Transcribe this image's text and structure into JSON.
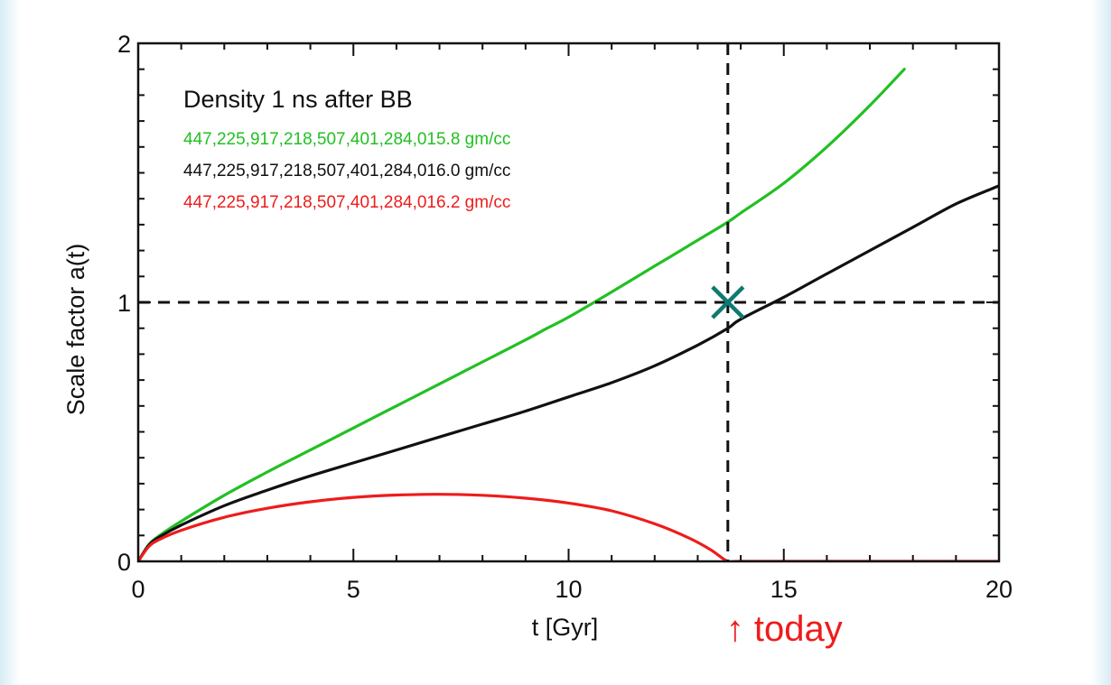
{
  "chart_data": {
    "type": "line",
    "title": "",
    "xlabel": "t [Gyr]",
    "ylabel": "Scale factor a(t)",
    "xlim": [
      0,
      20
    ],
    "ylim": [
      0,
      2
    ],
    "x_ticks": [
      0,
      5,
      10,
      15,
      20
    ],
    "y_ticks": [
      0,
      1,
      2
    ],
    "grid": false,
    "legend": {
      "title": "Density 1 ns after BB",
      "placement": "top-left",
      "entries": [
        {
          "label": "447,225,917,218,507,401,284,015.8 gm/cc",
          "color": "#22c022"
        },
        {
          "label": "447,225,917,218,507,401,284,016.0 gm/cc",
          "color": "#111111"
        },
        {
          "label": "447,225,917,218,507,401,284,016.2 gm/cc",
          "color": "#ee1c1c"
        }
      ]
    },
    "series": [
      {
        "name": "447,225,917,218,507,401,284,015.8 gm/cc",
        "color": "#22c022",
        "x": [
          0,
          0.25,
          0.5,
          1,
          2,
          3,
          4,
          5,
          6,
          7,
          8,
          9,
          9.5,
          10,
          11,
          12,
          13,
          13.7,
          14,
          15,
          16,
          17,
          17.8
        ],
        "y": [
          0,
          0.065,
          0.1,
          0.155,
          0.255,
          0.345,
          0.43,
          0.515,
          0.6,
          0.685,
          0.77,
          0.855,
          0.9,
          0.943,
          1.04,
          1.14,
          1.24,
          1.31,
          1.345,
          1.46,
          1.6,
          1.76,
          1.9
        ]
      },
      {
        "name": "447,225,917,218,507,401,284,016.0 gm/cc",
        "color": "#111111",
        "x": [
          0,
          0.25,
          0.5,
          1,
          2,
          3,
          4,
          5,
          6,
          7,
          8,
          9,
          10,
          11,
          12,
          13,
          13.7,
          14,
          15,
          16,
          17,
          18,
          19,
          20
        ],
        "y": [
          0,
          0.063,
          0.095,
          0.14,
          0.215,
          0.275,
          0.33,
          0.38,
          0.43,
          0.48,
          0.53,
          0.58,
          0.635,
          0.69,
          0.755,
          0.835,
          0.9,
          0.935,
          1.02,
          1.11,
          1.2,
          1.29,
          1.38,
          1.45
        ]
      },
      {
        "name": "447,225,917,218,507,401,284,016.2 gm/cc",
        "color": "#ee1c1c",
        "x": [
          0,
          0.25,
          0.5,
          1,
          2,
          3,
          4,
          5,
          6,
          7,
          8,
          9,
          10,
          11,
          12,
          12.8,
          13.3,
          13.7,
          14,
          16,
          18,
          20
        ],
        "y": [
          0,
          0.058,
          0.085,
          0.12,
          0.17,
          0.205,
          0.23,
          0.247,
          0.256,
          0.259,
          0.255,
          0.244,
          0.225,
          0.195,
          0.145,
          0.09,
          0.045,
          0.0,
          0.0,
          0.0,
          0.0,
          0.0
        ]
      }
    ],
    "reference_lines": [
      {
        "orientation": "horizontal",
        "value": 1,
        "style": "dashed",
        "color": "#111111"
      },
      {
        "orientation": "vertical",
        "value": 13.7,
        "style": "dashed",
        "color": "#111111"
      }
    ],
    "markers": [
      {
        "x": 13.7,
        "y": 1,
        "symbol": "x",
        "color": "#107a70"
      }
    ],
    "annotations": [
      {
        "text": "↑ today",
        "x": 13.7,
        "position": "below-axis",
        "color": "#ee1c1c"
      }
    ]
  }
}
